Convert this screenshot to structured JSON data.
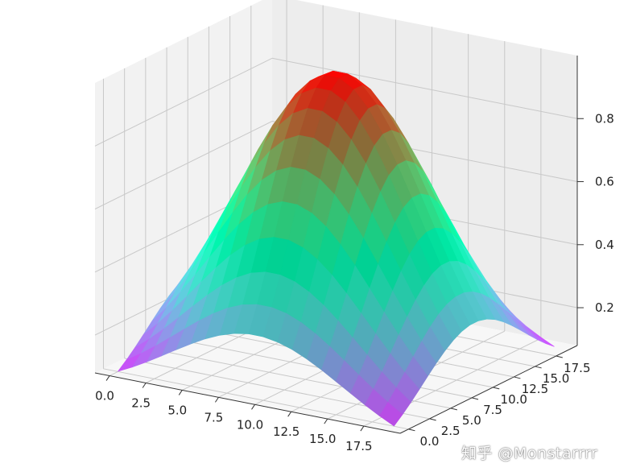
{
  "chart_data": {
    "type": "surface3d",
    "description_of_function": "z = exp(-((x - 9.5)^2 + (y - 9.5)^2) / 72), sampled on a 20x20 grid",
    "grid": {
      "x_start": 0,
      "x_step": 1,
      "y_start": 0,
      "y_step": 1,
      "n": 20
    },
    "center": [
      9.5,
      9.5
    ],
    "sigma_sq_2": 72,
    "z_peak": 0.99,
    "x_ticks": [
      "0.0",
      "2.5",
      "5.0",
      "7.5",
      "10.0",
      "12.5",
      "15.0",
      "17.5"
    ],
    "y_ticks": [
      "0.0",
      "2.5",
      "5.0",
      "7.5",
      "10.0",
      "12.5",
      "15.0",
      "17.5"
    ],
    "z_ticks": [
      "0.2",
      "0.4",
      "0.6",
      "0.8"
    ],
    "x_tick_values": [
      0,
      2.5,
      5,
      7.5,
      10,
      12.5,
      15,
      17.5
    ],
    "y_tick_values": [
      0,
      2.5,
      5,
      7.5,
      10,
      12.5,
      15,
      17.5
    ],
    "z_tick_values": [
      0.2,
      0.4,
      0.6,
      0.8
    ],
    "xlim": [
      -1,
      20
    ],
    "ylim": [
      -1,
      20
    ],
    "zlim": [
      0.08,
      1.0
    ],
    "colormap": "rainbow",
    "grid_on": true,
    "pane_color": "#f2f2f2"
  },
  "watermark": "知乎 @Monstarrrr"
}
